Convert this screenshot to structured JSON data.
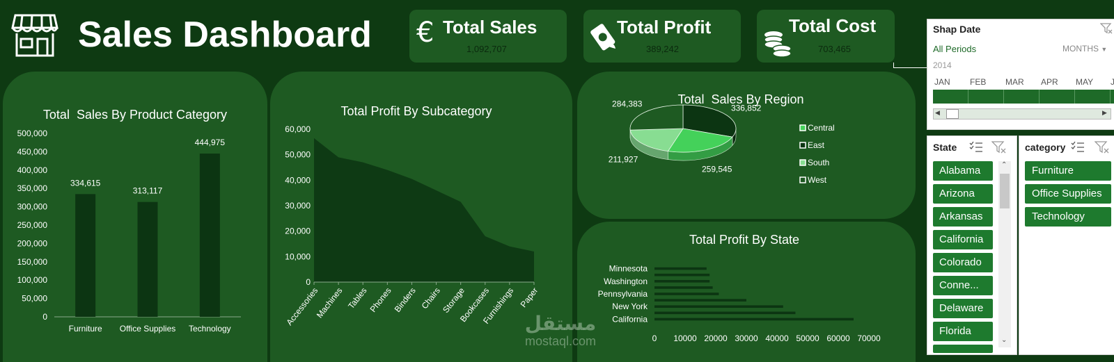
{
  "header": {
    "title": "Sales Dashboard"
  },
  "kpis": {
    "sales": {
      "label": "Total Sales",
      "value": "1,092,707"
    },
    "profit": {
      "label": "Total Profit",
      "value": "389,242"
    },
    "cost": {
      "label": "Total Cost",
      "value": "703,465"
    }
  },
  "colors": {
    "background": "#0e3a12",
    "panel": "#1e5a22",
    "dark_series": "#0c3512",
    "slicer_item": "#1e7a2e"
  },
  "date_slicer": {
    "title": "Shap Date",
    "all_periods": "All Periods",
    "unit": "MONTHS",
    "year": "2014",
    "months": [
      "JAN",
      "FEB",
      "MAR",
      "APR",
      "MAY",
      "JI"
    ]
  },
  "state_slicer": {
    "title": "State",
    "items": [
      "Alabama",
      "Arizona",
      "Arkansas",
      "California",
      "Colorado",
      "Conne...",
      "Delaware",
      "Florida"
    ]
  },
  "category_slicer": {
    "title": "category",
    "items": [
      "Furniture",
      "Office Supplies",
      "Technology"
    ]
  },
  "watermark": {
    "arabic": "مستقل",
    "latin": "mostaql.com"
  },
  "chart_data": [
    {
      "type": "bar",
      "title": "Total  Sales By Product Category",
      "categories": [
        "Furniture",
        "Office Supplies",
        "Technology"
      ],
      "values": [
        334615,
        313117,
        444975
      ],
      "value_labels": [
        "334,615",
        "313,117",
        "444,975"
      ],
      "ylim": [
        0,
        500000
      ],
      "yticks": [
        "0",
        "50,000",
        "100,000",
        "150,000",
        "200,000",
        "250,000",
        "300,000",
        "350,000",
        "400,000",
        "450,000",
        "500,000"
      ]
    },
    {
      "type": "area",
      "title": "Total Profit By Subcategory",
      "categories": [
        "Accessories",
        "Machines",
        "Tables",
        "Phones",
        "Binders",
        "Chairs",
        "Storage",
        "Bookcases",
        "Furnishings",
        "Paper"
      ],
      "values": [
        56500,
        49000,
        47000,
        44000,
        40500,
        36000,
        31500,
        18000,
        14000,
        12000
      ],
      "ylim": [
        0,
        60000
      ],
      "yticks": [
        "0",
        "10,000",
        "20,000",
        "30,000",
        "40,000",
        "50,000",
        "60,000"
      ]
    },
    {
      "type": "pie",
      "title": "Total  Sales By Region",
      "labels": [
        "Central",
        "East",
        "South",
        "West"
      ],
      "values": [
        259545,
        336852,
        211927,
        284383
      ],
      "value_labels": [
        "259,545",
        "336,852",
        "211,927",
        "284,383"
      ],
      "colors": [
        "#44d15a",
        "#0c3512",
        "#88dd92",
        "#1e5a22"
      ],
      "legend": "right"
    },
    {
      "type": "bar",
      "orientation": "horizontal",
      "title": "Total Profit By State",
      "categories": [
        "California",
        "",
        "New York",
        "",
        "Pennsylvania",
        "",
        "Washington",
        "",
        "Minnesota"
      ],
      "values": [
        65000,
        46000,
        42000,
        30000,
        21000,
        19000,
        18000,
        18000,
        17000
      ],
      "xlim": [
        0,
        70000
      ],
      "xticks": [
        "0",
        "10000",
        "20000",
        "30000",
        "40000",
        "50000",
        "60000",
        "70000"
      ]
    }
  ]
}
